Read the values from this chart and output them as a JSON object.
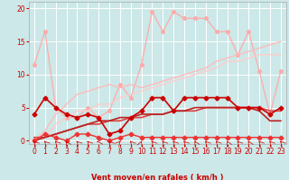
{
  "xlabel": "Vent moyen/en rafales ( km/h )",
  "xlim": [
    -0.5,
    23.5
  ],
  "ylim": [
    -0.5,
    21
  ],
  "yticks": [
    0,
    5,
    10,
    15,
    20
  ],
  "xticks": [
    0,
    1,
    2,
    3,
    4,
    5,
    6,
    7,
    8,
    9,
    10,
    11,
    12,
    13,
    14,
    15,
    16,
    17,
    18,
    19,
    20,
    21,
    22,
    23
  ],
  "bg_color": "#cce8e8",
  "grid_color": "#ffffff",
  "series": [
    {
      "x": [
        0,
        1,
        2,
        3,
        4,
        5,
        6,
        7,
        8,
        9,
        10,
        11,
        12,
        13,
        14,
        15,
        16,
        17,
        18,
        19,
        20,
        21,
        22,
        23
      ],
      "y": [
        11.5,
        16.5,
        5.0,
        3.5,
        3.5,
        5.0,
        3.5,
        4.5,
        8.5,
        6.5,
        11.5,
        19.5,
        16.5,
        19.5,
        18.5,
        18.5,
        18.5,
        16.5,
        16.5,
        13.0,
        16.5,
        10.5,
        4.0,
        10.5
      ],
      "color": "#ffaaaa",
      "marker": "o",
      "markersize": 2.5,
      "linewidth": 0.9,
      "zorder": 2
    },
    {
      "x": [
        0,
        1,
        2,
        3,
        4,
        5,
        6,
        7,
        8,
        9,
        10,
        11,
        12,
        13,
        14,
        15,
        16,
        17,
        18,
        19,
        20,
        21,
        22,
        23
      ],
      "y": [
        0.0,
        1.5,
        4.0,
        5.5,
        7.0,
        7.5,
        8.0,
        8.5,
        8.0,
        8.5,
        8.0,
        8.5,
        9.0,
        9.5,
        10.0,
        10.5,
        11.0,
        12.0,
        12.5,
        13.0,
        13.5,
        14.0,
        14.5,
        15.0
      ],
      "color": "#ffbbbb",
      "marker": null,
      "markersize": 0,
      "linewidth": 1.0,
      "zorder": 2
    },
    {
      "x": [
        0,
        1,
        2,
        3,
        4,
        5,
        6,
        7,
        8,
        9,
        10,
        11,
        12,
        13,
        14,
        15,
        16,
        17,
        18,
        19,
        20,
        21,
        22,
        23
      ],
      "y": [
        0.0,
        0.5,
        2.5,
        3.5,
        4.5,
        4.5,
        5.5,
        5.5,
        6.5,
        7.0,
        7.5,
        8.0,
        8.5,
        9.0,
        9.5,
        10.0,
        10.5,
        11.0,
        12.0,
        12.0,
        12.5,
        13.0,
        13.0,
        13.0
      ],
      "color": "#ffcccc",
      "marker": null,
      "markersize": 0,
      "linewidth": 1.0,
      "zorder": 2
    },
    {
      "x": [
        0,
        1,
        2,
        3,
        4,
        5,
        6,
        7,
        8,
        9,
        10,
        11,
        12,
        13,
        14,
        15,
        16,
        17,
        18,
        19,
        20,
        21,
        22,
        23
      ],
      "y": [
        4.0,
        6.5,
        5.0,
        4.0,
        3.5,
        4.0,
        3.5,
        1.0,
        1.5,
        3.5,
        4.5,
        6.5,
        6.5,
        4.5,
        6.5,
        6.5,
        6.5,
        6.5,
        6.5,
        5.0,
        5.0,
        5.0,
        4.0,
        5.0
      ],
      "color": "#cc0000",
      "marker": "D",
      "markersize": 2.5,
      "linewidth": 1.2,
      "zorder": 5
    },
    {
      "x": [
        0,
        1,
        2,
        3,
        4,
        5,
        6,
        7,
        8,
        9,
        10,
        11,
        12,
        13,
        14,
        15,
        16,
        17,
        18,
        19,
        20,
        21,
        22,
        23
      ],
      "y": [
        0.5,
        0.5,
        1.0,
        1.5,
        2.0,
        2.5,
        2.5,
        3.0,
        3.0,
        3.5,
        3.5,
        4.0,
        4.0,
        4.5,
        4.5,
        4.5,
        5.0,
        5.0,
        5.0,
        5.0,
        5.0,
        5.0,
        4.5,
        4.5
      ],
      "color": "#dd4444",
      "marker": null,
      "markersize": 0,
      "linewidth": 1.2,
      "zorder": 4
    },
    {
      "x": [
        0,
        1,
        2,
        3,
        4,
        5,
        6,
        7,
        8,
        9,
        10,
        11,
        12,
        13,
        14,
        15,
        16,
        17,
        18,
        19,
        20,
        21,
        22,
        23
      ],
      "y": [
        0.0,
        0.5,
        1.0,
        1.5,
        2.0,
        2.5,
        3.0,
        3.0,
        3.5,
        3.5,
        4.0,
        4.0,
        4.0,
        4.5,
        4.5,
        5.0,
        5.0,
        5.0,
        5.0,
        5.0,
        5.0,
        4.5,
        3.0,
        3.0
      ],
      "color": "#bb2222",
      "marker": null,
      "markersize": 0,
      "linewidth": 1.2,
      "zorder": 4
    },
    {
      "x": [
        0,
        1,
        2,
        3,
        4,
        5,
        6,
        7,
        8,
        9,
        10,
        11,
        12,
        13,
        14,
        15,
        16,
        17,
        18,
        19,
        20,
        21,
        22,
        23
      ],
      "y": [
        0.0,
        1.0,
        0.5,
        0.0,
        1.0,
        1.0,
        0.5,
        0.0,
        0.5,
        1.0,
        0.5,
        0.5,
        0.5,
        0.5,
        0.5,
        0.5,
        0.5,
        0.5,
        0.5,
        0.5,
        0.5,
        0.5,
        0.5,
        0.5
      ],
      "color": "#ee3333",
      "marker": "D",
      "markersize": 2.5,
      "linewidth": 1.0,
      "zorder": 5
    }
  ],
  "wind_arrow_angles": [
    210,
    210,
    210,
    200,
    210,
    210,
    270,
    210,
    150,
    210,
    165,
    210,
    210,
    210,
    210,
    200,
    210,
    210,
    200,
    210,
    200,
    210,
    210,
    210
  ]
}
